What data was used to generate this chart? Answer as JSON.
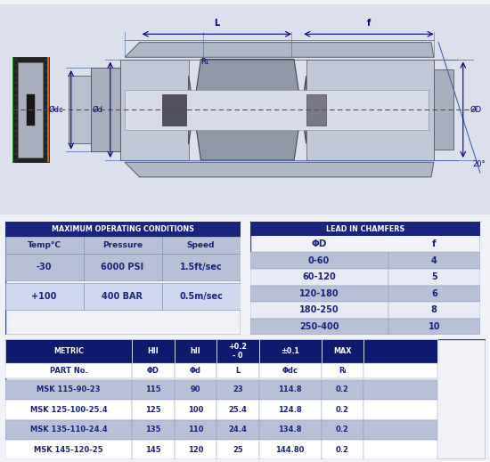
{
  "bg_color": "#f0f0f8",
  "diagram_bg": "#e8eaf0",
  "table1_header_bg": "#1a237e",
  "table1_header_fg": "#ffffff",
  "table1_row_bg1": "#b8c0d8",
  "table1_row_bg2": "#d0d8f0",
  "table2_header_bg": "#1a237e",
  "table2_header_fg": "#ffffff",
  "table2_col_bg": "#ffffff",
  "table2_row_bg1": "#b8c0d8",
  "table2_row_bg2": "#e8eaf6",
  "table3_header_bg": "#0d1a6e",
  "table3_header_fg": "#ffffff",
  "table3_row_bg1": "#b8c0d8",
  "table3_row_bg2": "#ffffff",
  "max_op_title": "MAXIMUM OPERATING CONDITIONS",
  "max_op_cols": [
    "Temp°C",
    "Pressure",
    "Speed"
  ],
  "max_op_rows": [
    [
      "-30",
      "6000 PSI",
      "1.5ft/sec"
    ],
    [
      "+100",
      "400 BAR",
      "0.5m/sec"
    ]
  ],
  "lead_title": "LEAD IN CHAMFERS",
  "lead_col1": "ΦD",
  "lead_col2": "f",
  "lead_rows": [
    [
      "0-60",
      "4"
    ],
    [
      "60-120",
      "5"
    ],
    [
      "120-180",
      "6"
    ],
    [
      "180-250",
      "8"
    ],
    [
      "250-400",
      "10"
    ]
  ],
  "metric_cols": [
    "METRIC",
    "HII",
    "hII",
    "+0.2\n- 0",
    "±0.1",
    "MAX",
    ""
  ],
  "metric_subhead": [
    "PART No.",
    "ΦD",
    "Φd",
    "L",
    "Φdc",
    "Rₗ",
    ""
  ],
  "metric_rows": [
    [
      "MSK 115-90-23",
      "115",
      "90",
      "23",
      "114.8",
      "0.2",
      ""
    ],
    [
      "MSK 125-100-25.4",
      "125",
      "100",
      "25.4",
      "124.8",
      "0.2",
      ""
    ],
    [
      "MSK 135-110-24.4",
      "135",
      "110",
      "24.4",
      "134.8",
      "0.2",
      ""
    ],
    [
      "MSK 145-120-25",
      "145",
      "120",
      "25",
      "144.80",
      "0.2",
      ""
    ]
  ],
  "dim_color": "#000080",
  "line_color": "#4466aa",
  "center_color": "#cc2200",
  "body_text_color": "#1a237e"
}
